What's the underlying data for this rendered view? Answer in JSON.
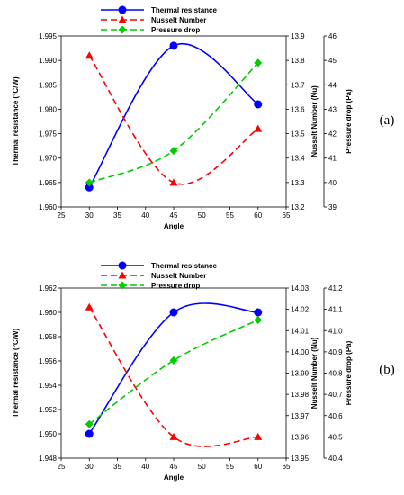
{
  "chart_data": [
    {
      "type": "line",
      "panel_label": "(a)",
      "x": [
        30,
        45,
        60
      ],
      "xlabel": "Angle",
      "xlim": [
        25,
        65
      ],
      "xticks": [
        "25",
        "30",
        "35",
        "40",
        "45",
        "50",
        "55",
        "60",
        "65"
      ],
      "axes": {
        "left": {
          "label": "Thermal resistance (°C/W)",
          "ylim": [
            1.96,
            1.995
          ],
          "ticks": [
            "1.960",
            "1.965",
            "1.970",
            "1.975",
            "1.980",
            "1.985",
            "1.990",
            "1.995"
          ]
        },
        "right1": {
          "label": "Nusselt Number (Nu)",
          "ylim": [
            13.2,
            13.9
          ],
          "ticks": [
            "13.2",
            "13.3",
            "13.4",
            "13.5",
            "13.6",
            "13.7",
            "13.8",
            "13.9"
          ]
        },
        "right2": {
          "label": "Pressure drop (Pa)",
          "ylim": [
            39,
            46
          ],
          "ticks": [
            "39",
            "40",
            "41",
            "42",
            "43",
            "44",
            "45",
            "46"
          ]
        }
      },
      "series": [
        {
          "name": "Thermal resistance",
          "axis": "left",
          "color": "#0000ff",
          "marker": "circle",
          "dash": "solid",
          "values": [
            1.964,
            1.993,
            1.981
          ]
        },
        {
          "name": "Nusselt Number",
          "axis": "right1",
          "color": "#ff0000",
          "marker": "triangle",
          "dash": "dashed",
          "values": [
            13.82,
            13.3,
            13.52
          ]
        },
        {
          "name": "Pressure drop",
          "axis": "right2",
          "color": "#00cc00",
          "marker": "diamond",
          "dash": "dashed",
          "values": [
            40.0,
            41.3,
            44.9
          ]
        }
      ],
      "legend_position": "top-center"
    },
    {
      "type": "line",
      "panel_label": "(b)",
      "x": [
        30,
        45,
        60
      ],
      "xlabel": "Angle",
      "xlim": [
        25,
        65
      ],
      "xticks": [
        "25",
        "30",
        "35",
        "40",
        "45",
        "50",
        "55",
        "60",
        "65"
      ],
      "axes": {
        "left": {
          "label": "Thermal resistance (°C/W)",
          "ylim": [
            1.948,
            1.962
          ],
          "ticks": [
            "1.948",
            "1.950",
            "1.952",
            "1.954",
            "1.956",
            "1.958",
            "1.960",
            "1.962"
          ]
        },
        "right1": {
          "label": "Nusselt Number (Nu)",
          "ylim": [
            13.95,
            14.03
          ],
          "ticks": [
            "13.95",
            "13.96",
            "13.97",
            "13.98",
            "13.99",
            "14.00",
            "14.01",
            "14.02",
            "14.03"
          ]
        },
        "right2": {
          "label": "Pressure drop (Pa)",
          "ylim": [
            40.4,
            41.2
          ],
          "ticks": [
            "40.4",
            "40.5",
            "40.6",
            "40.7",
            "40.8",
            "40.9",
            "41.0",
            "41.1",
            "41.2"
          ]
        }
      },
      "series": [
        {
          "name": "Thermal resistance",
          "axis": "left",
          "color": "#0000ff",
          "marker": "circle",
          "dash": "solid",
          "values": [
            1.95,
            1.96,
            1.96
          ]
        },
        {
          "name": "Nusselt Number",
          "axis": "right1",
          "color": "#ff0000",
          "marker": "triangle",
          "dash": "dashed",
          "values": [
            14.021,
            13.96,
            13.96
          ]
        },
        {
          "name": "Pressure drop",
          "axis": "right2",
          "color": "#00cc00",
          "marker": "diamond",
          "dash": "dashed",
          "values": [
            40.56,
            40.86,
            41.05
          ]
        }
      ],
      "legend_position": "top-center"
    }
  ]
}
